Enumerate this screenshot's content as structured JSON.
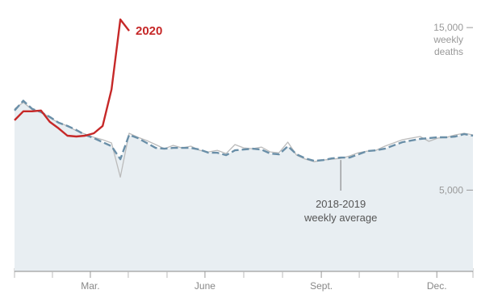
{
  "chart_data": {
    "type": "line",
    "title": "",
    "xlabel": "",
    "ylabel": "",
    "y_unit_label": [
      "weekly",
      "deaths"
    ],
    "ylim": [
      0,
      16200
    ],
    "x_range_weeks": [
      0,
      52
    ],
    "x_ticks": [
      {
        "label": "Mar.",
        "week": 8.6
      },
      {
        "label": "June",
        "week": 21.6
      },
      {
        "label": "Sept.",
        "week": 34.8
      },
      {
        "label": "Dec.",
        "week": 47.9
      }
    ],
    "x_minor_ticks_weeks": [
      4.3,
      12.9,
      17.3,
      26.0,
      30.4,
      39.1,
      43.5
    ],
    "y_ticks": [
      {
        "label": "15,000",
        "value": 15000
      },
      {
        "label": "5,000",
        "value": 5000
      }
    ],
    "series": [
      {
        "name": "2020",
        "color": "#c62828",
        "points": [
          [
            0,
            9300
          ],
          [
            1,
            9850
          ],
          [
            2,
            9850
          ],
          [
            3,
            9900
          ],
          [
            4,
            9200
          ],
          [
            5,
            8800
          ],
          [
            6,
            8350
          ],
          [
            7,
            8300
          ],
          [
            8,
            8350
          ],
          [
            9,
            8500
          ],
          [
            10,
            8950
          ],
          [
            11,
            11200
          ],
          [
            12,
            15500
          ],
          [
            13,
            14800
          ]
        ]
      },
      {
        "name": "",
        "color": "#bbbbbb",
        "points": [
          [
            0,
            10000
          ],
          [
            1,
            10400
          ],
          [
            2,
            9950
          ],
          [
            3,
            9850
          ],
          [
            4,
            9450
          ],
          [
            5,
            9150
          ],
          [
            6,
            8950
          ],
          [
            7,
            8650
          ],
          [
            8,
            8450
          ],
          [
            9,
            8250
          ],
          [
            10,
            8100
          ],
          [
            11,
            7900
          ],
          [
            12,
            5800
          ],
          [
            13,
            8500
          ],
          [
            14,
            8250
          ],
          [
            15,
            8050
          ],
          [
            16,
            7800
          ],
          [
            17,
            7550
          ],
          [
            18,
            7750
          ],
          [
            19,
            7600
          ],
          [
            20,
            7700
          ],
          [
            21,
            7450
          ],
          [
            22,
            7350
          ],
          [
            23,
            7450
          ],
          [
            24,
            7250
          ],
          [
            25,
            7800
          ],
          [
            26,
            7600
          ],
          [
            27,
            7550
          ],
          [
            28,
            7650
          ],
          [
            29,
            7350
          ],
          [
            30,
            7300
          ],
          [
            31,
            7950
          ],
          [
            32,
            7150
          ],
          [
            33,
            6900
          ],
          [
            34,
            6750
          ],
          [
            35,
            6850
          ],
          [
            36,
            6900
          ],
          [
            37,
            6950
          ],
          [
            38,
            7100
          ],
          [
            39,
            7300
          ],
          [
            40,
            7400
          ],
          [
            41,
            7450
          ],
          [
            42,
            7700
          ],
          [
            43,
            7900
          ],
          [
            44,
            8100
          ],
          [
            45,
            8200
          ],
          [
            46,
            8300
          ],
          [
            47,
            8000
          ],
          [
            48,
            8200
          ],
          [
            49,
            8250
          ],
          [
            50,
            8400
          ],
          [
            51,
            8500
          ],
          [
            52,
            8400
          ]
        ]
      },
      {
        "name": "",
        "color": "#6a8fa8",
        "points": [
          [
            0,
            9900
          ],
          [
            1,
            10500
          ],
          [
            2,
            10000
          ],
          [
            3,
            9800
          ],
          [
            4,
            9500
          ],
          [
            5,
            9150
          ],
          [
            6,
            8950
          ],
          [
            7,
            8700
          ],
          [
            8,
            8400
          ],
          [
            9,
            8200
          ],
          [
            10,
            7950
          ],
          [
            11,
            7700
          ],
          [
            12,
            6900
          ],
          [
            13,
            8400
          ],
          [
            14,
            8200
          ],
          [
            15,
            7900
          ],
          [
            16,
            7600
          ],
          [
            17,
            7550
          ],
          [
            18,
            7600
          ],
          [
            19,
            7600
          ],
          [
            20,
            7600
          ],
          [
            21,
            7500
          ],
          [
            22,
            7300
          ],
          [
            23,
            7300
          ],
          [
            24,
            7150
          ],
          [
            25,
            7450
          ],
          [
            26,
            7500
          ],
          [
            27,
            7550
          ],
          [
            28,
            7500
          ],
          [
            29,
            7250
          ],
          [
            30,
            7200
          ],
          [
            31,
            7700
          ],
          [
            32,
            7200
          ],
          [
            33,
            6950
          ],
          [
            34,
            6800
          ],
          [
            35,
            6850
          ],
          [
            36,
            6950
          ],
          [
            37,
            7000
          ],
          [
            38,
            7000
          ],
          [
            39,
            7200
          ],
          [
            40,
            7400
          ],
          [
            41,
            7450
          ],
          [
            42,
            7550
          ],
          [
            43,
            7750
          ],
          [
            44,
            7950
          ],
          [
            45,
            8050
          ],
          [
            46,
            8150
          ],
          [
            47,
            8200
          ],
          [
            48,
            8250
          ],
          [
            49,
            8250
          ],
          [
            50,
            8300
          ],
          [
            51,
            8450
          ],
          [
            52,
            8350
          ]
        ]
      }
    ],
    "annotations": [
      {
        "series": "2020",
        "label": "2020",
        "at_week": 13
      },
      {
        "label": [
          "2018-2019",
          "weekly average"
        ],
        "at_week": 37
      }
    ]
  }
}
